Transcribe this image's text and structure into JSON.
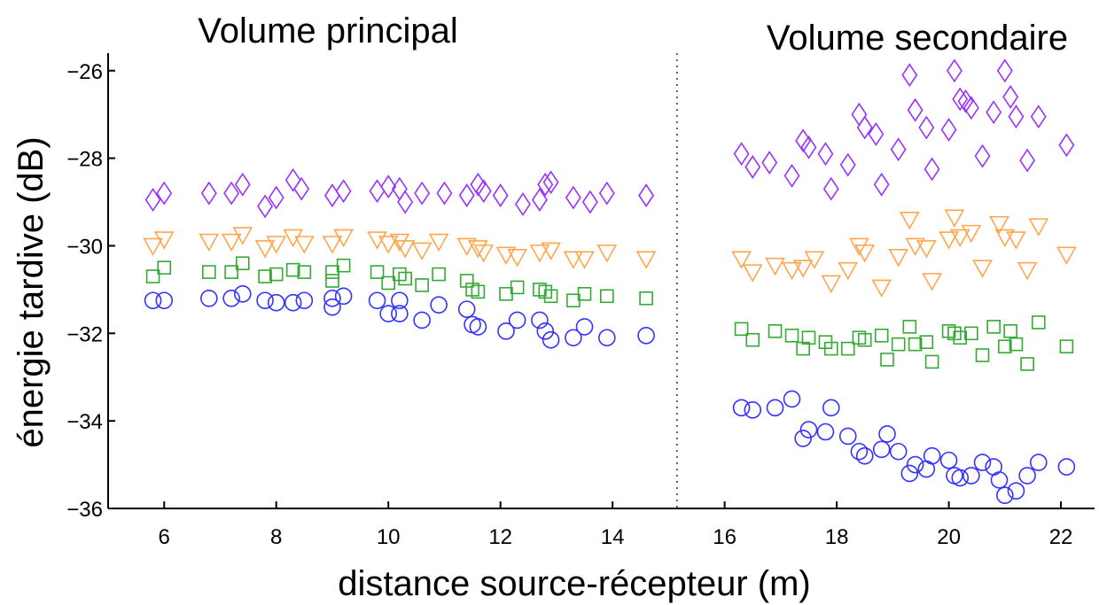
{
  "chart_data": {
    "type": "scatter",
    "title": "",
    "xlabel": "distance source-récepteur (m)",
    "ylabel": "énergie tardive (dB)",
    "xlim": [
      5,
      22.6
    ],
    "ylim": [
      -36,
      -25.6
    ],
    "xticks": [
      6,
      8,
      10,
      12,
      14,
      16,
      18,
      20,
      22
    ],
    "yticks": [
      -26,
      -28,
      -30,
      -32,
      -34,
      -36
    ],
    "xtick_labels": [
      "6",
      "8",
      "10",
      "12",
      "14",
      "16",
      "18",
      "20",
      "22"
    ],
    "ytick_labels": [
      "−26",
      "−28",
      "−30",
      "−32",
      "−34",
      "−36"
    ],
    "grid": false,
    "legend": "none",
    "divider_x": 15.15,
    "regions": [
      {
        "label": "Volume principal"
      },
      {
        "label": "Volume secondaire"
      }
    ],
    "series": [
      {
        "marker": "diamond",
        "color": "#9933ff",
        "points": [
          [
            5.8,
            -28.95
          ],
          [
            6.0,
            -28.8
          ],
          [
            6.8,
            -28.8
          ],
          [
            7.2,
            -28.8
          ],
          [
            7.4,
            -28.6
          ],
          [
            7.8,
            -29.1
          ],
          [
            8.0,
            -28.9
          ],
          [
            8.3,
            -28.5
          ],
          [
            8.45,
            -28.7
          ],
          [
            9.0,
            -28.85
          ],
          [
            9.2,
            -28.75
          ],
          [
            9.8,
            -28.75
          ],
          [
            10.0,
            -28.65
          ],
          [
            10.2,
            -28.7
          ],
          [
            10.3,
            -29.0
          ],
          [
            10.6,
            -28.8
          ],
          [
            11.0,
            -28.8
          ],
          [
            11.4,
            -28.85
          ],
          [
            11.6,
            -28.6
          ],
          [
            11.7,
            -28.75
          ],
          [
            12.0,
            -28.85
          ],
          [
            12.4,
            -29.05
          ],
          [
            12.7,
            -28.95
          ],
          [
            12.8,
            -28.6
          ],
          [
            12.9,
            -28.55
          ],
          [
            13.3,
            -28.9
          ],
          [
            13.6,
            -29.0
          ],
          [
            13.9,
            -28.8
          ],
          [
            14.6,
            -28.85
          ],
          [
            16.3,
            -27.9
          ],
          [
            16.5,
            -28.2
          ],
          [
            16.8,
            -28.1
          ],
          [
            17.2,
            -28.4
          ],
          [
            17.4,
            -27.6
          ],
          [
            17.5,
            -27.75
          ],
          [
            17.8,
            -27.9
          ],
          [
            17.9,
            -28.7
          ],
          [
            18.2,
            -28.15
          ],
          [
            18.4,
            -27.0
          ],
          [
            18.5,
            -27.3
          ],
          [
            18.7,
            -27.45
          ],
          [
            18.8,
            -28.6
          ],
          [
            19.1,
            -27.8
          ],
          [
            19.3,
            -26.1
          ],
          [
            19.4,
            -26.9
          ],
          [
            19.6,
            -27.3
          ],
          [
            19.7,
            -28.25
          ],
          [
            20.0,
            -27.35
          ],
          [
            20.1,
            -26.0
          ],
          [
            20.2,
            -26.65
          ],
          [
            20.3,
            -26.7
          ],
          [
            20.4,
            -26.85
          ],
          [
            20.6,
            -27.95
          ],
          [
            20.8,
            -26.95
          ],
          [
            21.0,
            -26.0
          ],
          [
            21.1,
            -26.6
          ],
          [
            21.2,
            -27.05
          ],
          [
            21.4,
            -28.05
          ],
          [
            21.6,
            -27.05
          ],
          [
            22.1,
            -27.7
          ]
        ]
      },
      {
        "marker": "triangle-down",
        "color": "#ffa64d",
        "points": [
          [
            5.8,
            -30.0
          ],
          [
            6.0,
            -29.85
          ],
          [
            6.8,
            -29.9
          ],
          [
            7.2,
            -29.9
          ],
          [
            7.4,
            -29.75
          ],
          [
            7.8,
            -30.05
          ],
          [
            8.0,
            -29.95
          ],
          [
            8.3,
            -29.8
          ],
          [
            8.5,
            -29.95
          ],
          [
            9.0,
            -29.95
          ],
          [
            9.2,
            -29.8
          ],
          [
            9.8,
            -29.85
          ],
          [
            10.0,
            -29.95
          ],
          [
            10.2,
            -29.9
          ],
          [
            10.3,
            -30.05
          ],
          [
            10.6,
            -30.1
          ],
          [
            10.9,
            -29.9
          ],
          [
            11.4,
            -30.0
          ],
          [
            11.6,
            -30.05
          ],
          [
            11.7,
            -30.15
          ],
          [
            12.1,
            -30.2
          ],
          [
            12.3,
            -30.25
          ],
          [
            12.7,
            -30.15
          ],
          [
            12.9,
            -30.1
          ],
          [
            13.3,
            -30.3
          ],
          [
            13.5,
            -30.3
          ],
          [
            13.9,
            -30.15
          ],
          [
            14.6,
            -30.3
          ],
          [
            16.3,
            -30.3
          ],
          [
            16.5,
            -30.6
          ],
          [
            16.9,
            -30.45
          ],
          [
            17.2,
            -30.55
          ],
          [
            17.4,
            -30.5
          ],
          [
            17.6,
            -30.3
          ],
          [
            17.9,
            -30.85
          ],
          [
            18.2,
            -30.55
          ],
          [
            18.4,
            -30.0
          ],
          [
            18.5,
            -30.15
          ],
          [
            18.8,
            -30.95
          ],
          [
            19.1,
            -30.25
          ],
          [
            19.3,
            -29.4
          ],
          [
            19.4,
            -30.0
          ],
          [
            19.6,
            -30.05
          ],
          [
            19.7,
            -30.8
          ],
          [
            20.0,
            -29.85
          ],
          [
            20.1,
            -29.35
          ],
          [
            20.2,
            -29.8
          ],
          [
            20.4,
            -29.7
          ],
          [
            20.6,
            -30.5
          ],
          [
            20.9,
            -29.5
          ],
          [
            21.0,
            -29.8
          ],
          [
            21.2,
            -29.85
          ],
          [
            21.4,
            -30.55
          ],
          [
            21.6,
            -29.55
          ],
          [
            22.1,
            -30.2
          ]
        ]
      },
      {
        "marker": "square",
        "color": "#33aa33",
        "points": [
          [
            5.8,
            -30.7
          ],
          [
            6.0,
            -30.5
          ],
          [
            6.8,
            -30.6
          ],
          [
            7.2,
            -30.6
          ],
          [
            7.4,
            -30.4
          ],
          [
            7.8,
            -30.7
          ],
          [
            8.0,
            -30.65
          ],
          [
            8.3,
            -30.55
          ],
          [
            8.5,
            -30.6
          ],
          [
            9.0,
            -30.8
          ],
          [
            9.0,
            -30.6
          ],
          [
            9.2,
            -30.45
          ],
          [
            9.8,
            -30.6
          ],
          [
            10.0,
            -30.85
          ],
          [
            10.2,
            -30.65
          ],
          [
            10.3,
            -30.75
          ],
          [
            10.6,
            -30.9
          ],
          [
            10.9,
            -30.65
          ],
          [
            11.4,
            -30.8
          ],
          [
            11.5,
            -31.0
          ],
          [
            11.6,
            -31.05
          ],
          [
            12.1,
            -31.1
          ],
          [
            12.3,
            -30.95
          ],
          [
            12.7,
            -31.0
          ],
          [
            12.8,
            -31.05
          ],
          [
            12.9,
            -31.15
          ],
          [
            13.3,
            -31.25
          ],
          [
            13.5,
            -31.1
          ],
          [
            13.9,
            -31.15
          ],
          [
            14.6,
            -31.2
          ],
          [
            16.3,
            -31.9
          ],
          [
            16.5,
            -32.15
          ],
          [
            16.9,
            -31.95
          ],
          [
            17.2,
            -32.05
          ],
          [
            17.4,
            -32.35
          ],
          [
            17.5,
            -32.1
          ],
          [
            17.8,
            -32.2
          ],
          [
            17.9,
            -32.35
          ],
          [
            18.2,
            -32.35
          ],
          [
            18.4,
            -32.1
          ],
          [
            18.5,
            -32.15
          ],
          [
            18.8,
            -32.05
          ],
          [
            18.9,
            -32.6
          ],
          [
            19.1,
            -32.25
          ],
          [
            19.3,
            -31.85
          ],
          [
            19.4,
            -32.25
          ],
          [
            19.6,
            -32.2
          ],
          [
            19.7,
            -32.65
          ],
          [
            20.0,
            -31.95
          ],
          [
            20.1,
            -32.0
          ],
          [
            20.2,
            -32.1
          ],
          [
            20.4,
            -32.0
          ],
          [
            20.6,
            -32.5
          ],
          [
            20.8,
            -31.85
          ],
          [
            21.0,
            -32.3
          ],
          [
            21.1,
            -31.95
          ],
          [
            21.2,
            -32.25
          ],
          [
            21.4,
            -32.7
          ],
          [
            21.6,
            -31.75
          ],
          [
            22.1,
            -32.3
          ]
        ]
      },
      {
        "marker": "circle",
        "color": "#3333ff",
        "points": [
          [
            5.8,
            -31.25
          ],
          [
            6.0,
            -31.25
          ],
          [
            6.8,
            -31.2
          ],
          [
            7.2,
            -31.2
          ],
          [
            7.4,
            -31.1
          ],
          [
            7.8,
            -31.25
          ],
          [
            8.0,
            -31.3
          ],
          [
            8.3,
            -31.3
          ],
          [
            8.5,
            -31.25
          ],
          [
            9.0,
            -31.4
          ],
          [
            9.0,
            -31.2
          ],
          [
            9.2,
            -31.15
          ],
          [
            9.8,
            -31.25
          ],
          [
            10.0,
            -31.55
          ],
          [
            10.2,
            -31.25
          ],
          [
            10.2,
            -31.55
          ],
          [
            10.6,
            -31.7
          ],
          [
            10.9,
            -31.35
          ],
          [
            11.4,
            -31.45
          ],
          [
            11.5,
            -31.8
          ],
          [
            11.6,
            -31.85
          ],
          [
            12.1,
            -31.95
          ],
          [
            12.3,
            -31.7
          ],
          [
            12.7,
            -31.7
          ],
          [
            12.8,
            -31.95
          ],
          [
            12.9,
            -32.15
          ],
          [
            13.3,
            -32.1
          ],
          [
            13.5,
            -31.85
          ],
          [
            13.9,
            -32.1
          ],
          [
            14.6,
            -32.05
          ],
          [
            16.3,
            -33.7
          ],
          [
            16.5,
            -33.75
          ],
          [
            16.9,
            -33.7
          ],
          [
            17.2,
            -33.5
          ],
          [
            17.4,
            -34.4
          ],
          [
            17.5,
            -34.2
          ],
          [
            17.8,
            -34.25
          ],
          [
            17.9,
            -33.7
          ],
          [
            18.2,
            -34.35
          ],
          [
            18.4,
            -34.7
          ],
          [
            18.5,
            -34.8
          ],
          [
            18.8,
            -34.65
          ],
          [
            18.9,
            -34.3
          ],
          [
            19.1,
            -34.7
          ],
          [
            19.3,
            -35.2
          ],
          [
            19.4,
            -35.0
          ],
          [
            19.6,
            -35.1
          ],
          [
            19.7,
            -34.8
          ],
          [
            20.0,
            -34.9
          ],
          [
            20.1,
            -35.25
          ],
          [
            20.2,
            -35.3
          ],
          [
            20.4,
            -35.25
          ],
          [
            20.6,
            -34.95
          ],
          [
            20.8,
            -35.05
          ],
          [
            20.9,
            -35.35
          ],
          [
            21.0,
            -35.7
          ],
          [
            21.2,
            -35.6
          ],
          [
            21.4,
            -35.25
          ],
          [
            21.6,
            -34.95
          ],
          [
            22.1,
            -35.05
          ]
        ]
      }
    ]
  }
}
